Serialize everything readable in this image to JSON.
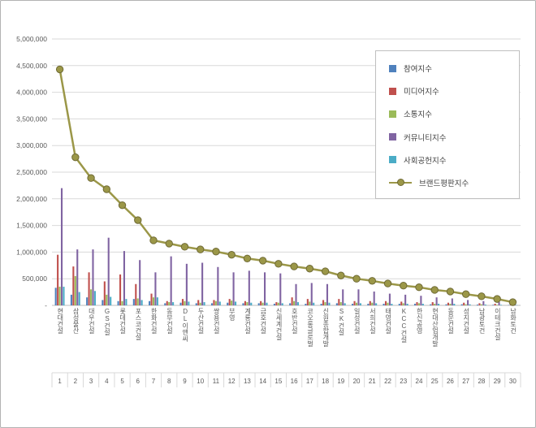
{
  "page": {
    "background": "#ffffff",
    "border_color": "#b3b3b3"
  },
  "axis": {
    "y_ticks": [
      "5,000,000",
      "4,500,000",
      "4,000,000",
      "3,500,000",
      "3,000,000",
      "2,500,000",
      "2,000,000",
      "1,500,000",
      "1,000,000",
      "500,000",
      "-"
    ]
  },
  "legend": {
    "items": [
      {
        "label": "참여지수",
        "color": "#4F81BD",
        "type": "bar"
      },
      {
        "label": "미디어지수",
        "color": "#C0504D",
        "type": "bar"
      },
      {
        "label": "소통지수",
        "color": "#9BBB59",
        "type": "bar"
      },
      {
        "label": "커뮤니티지수",
        "color": "#8064A2",
        "type": "bar"
      },
      {
        "label": "사회공헌지수",
        "color": "#4BACC6",
        "type": "bar"
      },
      {
        "label": "브랜드평판지수",
        "color": "#9B9748",
        "type": "line"
      }
    ]
  },
  "chart_data": {
    "type": "bar+line combo",
    "title": "",
    "xlabel": "",
    "ylabel": "",
    "ylim": [
      0,
      5000000
    ],
    "y_step": 500000,
    "grid": true,
    "legend_position": "top-right-inside",
    "categories": [
      "현대건설",
      "삼성물산",
      "대우건설",
      "GS건설",
      "롯데건설",
      "포스코건설",
      "한화건설",
      "동부건설",
      "DL이앤씨",
      "두산건설",
      "쌍용건설",
      "부영",
      "계룡건설",
      "금호건설",
      "신세계건설",
      "호반건설",
      "코오롱글로벌",
      "신원종합개발",
      "SK건설",
      "일성건설",
      "서희건설",
      "태영건설",
      "KCC건설",
      "한신공영",
      "현대산업개발",
      "동문건설",
      "성지건설",
      "남광토건",
      "이테크건설",
      "남화토건"
    ],
    "ranks": [
      1,
      2,
      3,
      4,
      5,
      6,
      7,
      8,
      9,
      10,
      11,
      12,
      13,
      14,
      15,
      16,
      17,
      18,
      19,
      20,
      21,
      22,
      23,
      24,
      25,
      26,
      27,
      28,
      29,
      30
    ],
    "series": [
      {
        "name": "참여지수",
        "type": "bar",
        "color": "#4F81BD",
        "values": [
          330000,
          200000,
          150000,
          100000,
          80000,
          120000,
          80000,
          40000,
          50000,
          40000,
          40000,
          50000,
          40000,
          40000,
          30000,
          40000,
          30000,
          30000,
          40000,
          30000,
          30000,
          30000,
          30000,
          30000,
          20000,
          20000,
          20000,
          15000,
          10000,
          6000
        ]
      },
      {
        "name": "미디어지수",
        "type": "bar",
        "color": "#C0504D",
        "values": [
          950000,
          730000,
          620000,
          450000,
          580000,
          400000,
          220000,
          80000,
          120000,
          100000,
          100000,
          120000,
          80000,
          80000,
          60000,
          150000,
          120000,
          100000,
          120000,
          80000,
          80000,
          80000,
          70000,
          60000,
          60000,
          50000,
          50000,
          40000,
          30000,
          10000
        ]
      },
      {
        "name": "소통지수",
        "type": "bar",
        "color": "#9BBB59",
        "values": [
          350000,
          550000,
          300000,
          200000,
          80000,
          130000,
          150000,
          60000,
          80000,
          50000,
          80000,
          90000,
          60000,
          50000,
          50000,
          80000,
          70000,
          60000,
          60000,
          50000,
          50000,
          50000,
          40000,
          40000,
          30000,
          30000,
          20000,
          20000,
          10000,
          8000
        ]
      },
      {
        "name": "커뮤니티지수",
        "type": "bar",
        "color": "#8064A2",
        "values": [
          2200000,
          1050000,
          1050000,
          1270000,
          1020000,
          850000,
          620000,
          920000,
          780000,
          800000,
          720000,
          620000,
          650000,
          620000,
          600000,
          400000,
          420000,
          400000,
          300000,
          300000,
          260000,
          220000,
          200000,
          180000,
          150000,
          130000,
          100000,
          80000,
          60000,
          30000
        ]
      },
      {
        "name": "사회공헌지수",
        "type": "bar",
        "color": "#4BACC6",
        "values": [
          350000,
          250000,
          270000,
          160000,
          120000,
          100000,
          150000,
          60000,
          70000,
          60000,
          70000,
          70000,
          50000,
          50000,
          40000,
          60000,
          50000,
          50000,
          40000,
          40000,
          40000,
          30000,
          30000,
          30000,
          30000,
          30000,
          20000,
          15000,
          10000,
          6000
        ]
      },
      {
        "name": "브랜드평판지수",
        "type": "line",
        "color": "#9B9748",
        "marker_stroke": "#6F6A35",
        "values": [
          4430000,
          2780000,
          2390000,
          2180000,
          1880000,
          1600000,
          1220000,
          1160000,
          1100000,
          1050000,
          1010000,
          950000,
          880000,
          840000,
          780000,
          730000,
          690000,
          640000,
          560000,
          500000,
          460000,
          410000,
          370000,
          340000,
          290000,
          260000,
          210000,
          170000,
          120000,
          60000
        ]
      }
    ]
  }
}
